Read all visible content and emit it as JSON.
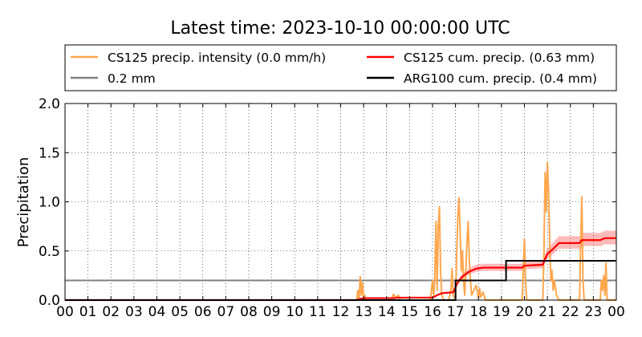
{
  "chart_data": {
    "type": "line",
    "title": "Latest time: 2023-10-10 00:00:00 UTC",
    "xlabel": "",
    "ylabel": "Precipitation",
    "xlim": [
      0,
      24
    ],
    "ylim": [
      0,
      2.0
    ],
    "grid": true,
    "legend_position": "top-outside",
    "x_tick_labels": [
      "00",
      "01",
      "02",
      "03",
      "04",
      "05",
      "06",
      "07",
      "08",
      "09",
      "10",
      "11",
      "12",
      "13",
      "14",
      "15",
      "16",
      "17",
      "18",
      "19",
      "20",
      "21",
      "22",
      "23",
      "00"
    ],
    "y_tick_labels": [
      "0.0",
      "0.5",
      "1.0",
      "1.5",
      "2.0"
    ],
    "y_ticks": [
      0.0,
      0.5,
      1.0,
      1.5,
      2.0
    ],
    "legend": [
      {
        "name": "CS125 precip. intensity (0.0 mm/h)",
        "color": "#ffa64d"
      },
      {
        "name": "CS125 cum. precip. (0.63 mm)",
        "color": "#ff0000"
      },
      {
        "name": "0.2 mm",
        "color": "#808080"
      },
      {
        "name": "ARG100 cum. precip. (0.4 mm)",
        "color": "#000000"
      }
    ],
    "series": [
      {
        "name": "CS125 precip. intensity (0.0 mm/h)",
        "color": "#ffa64d",
        "x": [
          0,
          12.7,
          12.75,
          12.8,
          12.85,
          12.9,
          12.95,
          13.0,
          13.05,
          13.1,
          14.2,
          14.3,
          14.4,
          14.5,
          14.6,
          15.9,
          16.0,
          16.05,
          16.1,
          16.15,
          16.2,
          16.25,
          16.3,
          16.35,
          16.4,
          16.5,
          16.7,
          16.8,
          16.85,
          16.9,
          17.0,
          17.05,
          17.1,
          17.15,
          17.2,
          17.25,
          17.3,
          17.35,
          17.4,
          17.5,
          17.55,
          17.6,
          17.65,
          17.7,
          17.8,
          17.9,
          18.0,
          18.05,
          18.1,
          18.2,
          18.3,
          19.9,
          19.95,
          20.0,
          20.05,
          20.1,
          20.8,
          20.85,
          20.9,
          20.95,
          21.0,
          21.05,
          21.1,
          21.15,
          21.2,
          21.25,
          21.3,
          21.4,
          21.5,
          22.4,
          22.45,
          22.5,
          22.55,
          22.6,
          23.3,
          23.35,
          23.4,
          23.45,
          23.5,
          23.55,
          23.6,
          24.0
        ],
        "values": [
          0,
          0,
          0.1,
          0.0,
          0.24,
          0.05,
          0.18,
          0.02,
          0.05,
          0,
          0,
          0.06,
          0.02,
          0.05,
          0,
          0,
          0.2,
          0.05,
          0.22,
          0.8,
          0.1,
          0.75,
          0.95,
          0.3,
          0.05,
          0,
          0,
          0.1,
          0.32,
          0.05,
          0,
          0.45,
          0.85,
          1.04,
          0.7,
          0.3,
          0.5,
          0.2,
          0.05,
          0.6,
          0.8,
          0.4,
          0.2,
          0.05,
          0.1,
          0.15,
          0.02,
          0.12,
          0.03,
          0.08,
          0,
          0,
          0.3,
          0.62,
          0.2,
          0,
          0,
          0.5,
          1.3,
          0.9,
          1.4,
          1.1,
          0.6,
          0.2,
          0.3,
          0.1,
          0.2,
          0.05,
          0,
          0,
          0.6,
          1.05,
          0.2,
          0,
          0,
          0.2,
          0.1,
          0.25,
          0.05,
          0.38,
          0,
          0
        ]
      },
      {
        "name": "CS125 cum. precip. (0.63 mm)",
        "color": "#ff0000",
        "x": [
          0,
          12.7,
          12.8,
          13.0,
          14.3,
          14.5,
          16.0,
          16.2,
          16.4,
          16.9,
          17.1,
          17.3,
          17.6,
          17.9,
          18.2,
          19.9,
          20.0,
          20.8,
          20.9,
          21.0,
          21.2,
          21.5,
          22.4,
          22.5,
          23.3,
          23.5,
          24.0
        ],
        "values": [
          0,
          0,
          0.01,
          0.02,
          0.02,
          0.025,
          0.025,
          0.05,
          0.07,
          0.08,
          0.18,
          0.24,
          0.29,
          0.32,
          0.33,
          0.33,
          0.35,
          0.36,
          0.42,
          0.47,
          0.51,
          0.58,
          0.58,
          0.61,
          0.61,
          0.63,
          0.63
        ]
      },
      {
        "name": "0.2 mm",
        "color": "#808080",
        "x": [
          0,
          24
        ],
        "values": [
          0.2,
          0.2
        ]
      },
      {
        "name": "ARG100 cum. precip. (0.4 mm)",
        "color": "#000000",
        "x": [
          0,
          17.0,
          17.0,
          19.2,
          19.2,
          24.0
        ],
        "values": [
          0,
          0,
          0.2,
          0.2,
          0.4,
          0.4
        ]
      }
    ]
  }
}
